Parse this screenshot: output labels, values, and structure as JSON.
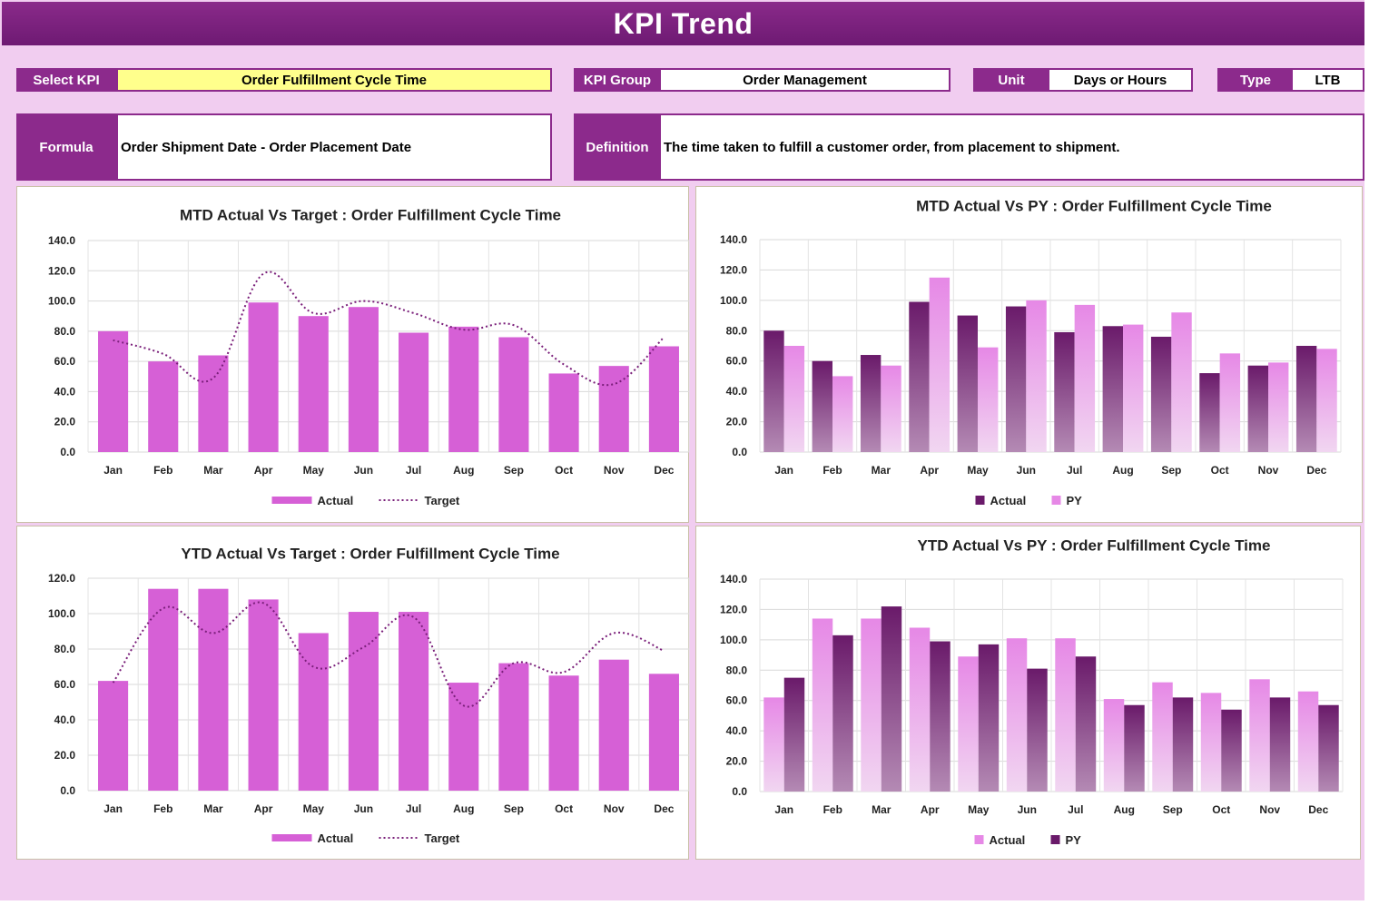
{
  "header": {
    "title": "KPI Trend"
  },
  "selectors": {
    "select_kpi_label": "Select KPI",
    "select_kpi_value": "Order Fulfillment Cycle Time",
    "kpi_group_label": "KPI Group",
    "kpi_group_value": "Order Management",
    "unit_label": "Unit",
    "unit_value": "Days or Hours",
    "type_label": "Type",
    "type_value": "LTB"
  },
  "info": {
    "formula_label": "Formula",
    "formula_value": "Order Shipment Date - Order Placement Date",
    "definition_label": "Definition",
    "definition_value": "The time taken to fulfill a customer order, from placement to shipment."
  },
  "colors": {
    "accent": "#8c2a8c",
    "actual_bar": "#d660d6",
    "target_line": "#7a1f7a",
    "dark_bar_top": "#6a1a6a",
    "light_bar_top": "#e688e6",
    "yellow": "#ffff8c"
  },
  "chart_data": [
    {
      "id": "mtd_target",
      "type": "bar",
      "title": "MTD Actual Vs Target : Order Fulfillment Cycle Time",
      "categories": [
        "Jan",
        "Feb",
        "Mar",
        "Apr",
        "May",
        "Jun",
        "Jul",
        "Aug",
        "Sep",
        "Oct",
        "Nov",
        "Dec"
      ],
      "ylim": [
        0,
        140
      ],
      "yticks": [
        "0.0",
        "20.0",
        "40.0",
        "60.0",
        "80.0",
        "100.0",
        "120.0",
        "140.0"
      ],
      "grid": true,
      "legend": "bottom",
      "series": [
        {
          "name": "Actual",
          "kind": "bar",
          "values": [
            80,
            60,
            64,
            99,
            90,
            96,
            79,
            83,
            76,
            52,
            57,
            70
          ]
        },
        {
          "name": "Target",
          "kind": "line-dotted",
          "values": [
            74,
            65,
            49,
            118,
            92,
            100,
            92,
            81,
            84,
            58,
            45,
            76
          ]
        }
      ]
    },
    {
      "id": "mtd_py",
      "type": "bar",
      "title": "MTD Actual Vs PY : Order Fulfillment Cycle Time",
      "categories": [
        "Jan",
        "Feb",
        "Mar",
        "Apr",
        "May",
        "Jun",
        "Jul",
        "Aug",
        "Sep",
        "Oct",
        "Nov",
        "Dec"
      ],
      "ylim": [
        0,
        140
      ],
      "yticks": [
        "0.0",
        "20.0",
        "40.0",
        "60.0",
        "80.0",
        "100.0",
        "120.0",
        "140.0"
      ],
      "grid": true,
      "legend": "bottom",
      "series": [
        {
          "name": "Actual",
          "kind": "bar-dark",
          "values": [
            80,
            60,
            64,
            99,
            90,
            96,
            79,
            83,
            76,
            52,
            57,
            70
          ]
        },
        {
          "name": "PY",
          "kind": "bar-light",
          "values": [
            70,
            50,
            57,
            115,
            69,
            100,
            97,
            84,
            92,
            65,
            59,
            68
          ]
        }
      ]
    },
    {
      "id": "ytd_target",
      "type": "bar",
      "title": "YTD Actual Vs Target : Order Fulfillment Cycle Time",
      "categories": [
        "Jan",
        "Feb",
        "Mar",
        "Apr",
        "May",
        "Jun",
        "Jul",
        "Aug",
        "Sep",
        "Oct",
        "Nov",
        "Dec"
      ],
      "ylim": [
        0,
        120
      ],
      "yticks": [
        "0.0",
        "20.0",
        "40.0",
        "60.0",
        "80.0",
        "100.0",
        "120.0"
      ],
      "grid": true,
      "legend": "bottom",
      "series": [
        {
          "name": "Actual",
          "kind": "bar",
          "values": [
            62,
            114,
            114,
            108,
            89,
            101,
            101,
            61,
            72,
            65,
            74,
            66
          ]
        },
        {
          "name": "Target",
          "kind": "line-dotted",
          "values": [
            61,
            103,
            89,
            106,
            70,
            81,
            98,
            48,
            72,
            67,
            89,
            79
          ]
        }
      ]
    },
    {
      "id": "ytd_py",
      "type": "bar",
      "title": "YTD Actual Vs PY : Order Fulfillment Cycle Time",
      "categories": [
        "Jan",
        "Feb",
        "Mar",
        "Apr",
        "May",
        "Jun",
        "Jul",
        "Aug",
        "Sep",
        "Oct",
        "Nov",
        "Dec"
      ],
      "ylim": [
        0,
        140
      ],
      "yticks": [
        "0.0",
        "20.0",
        "40.0",
        "60.0",
        "80.0",
        "100.0",
        "120.0",
        "140.0"
      ],
      "grid": true,
      "legend": "bottom",
      "series": [
        {
          "name": "Actual",
          "kind": "bar-light",
          "values": [
            62,
            114,
            114,
            108,
            89,
            101,
            101,
            61,
            72,
            65,
            74,
            66
          ]
        },
        {
          "name": "PY",
          "kind": "bar-dark",
          "values": [
            75,
            103,
            122,
            99,
            97,
            81,
            89,
            57,
            62,
            54,
            62,
            57
          ]
        }
      ]
    }
  ]
}
